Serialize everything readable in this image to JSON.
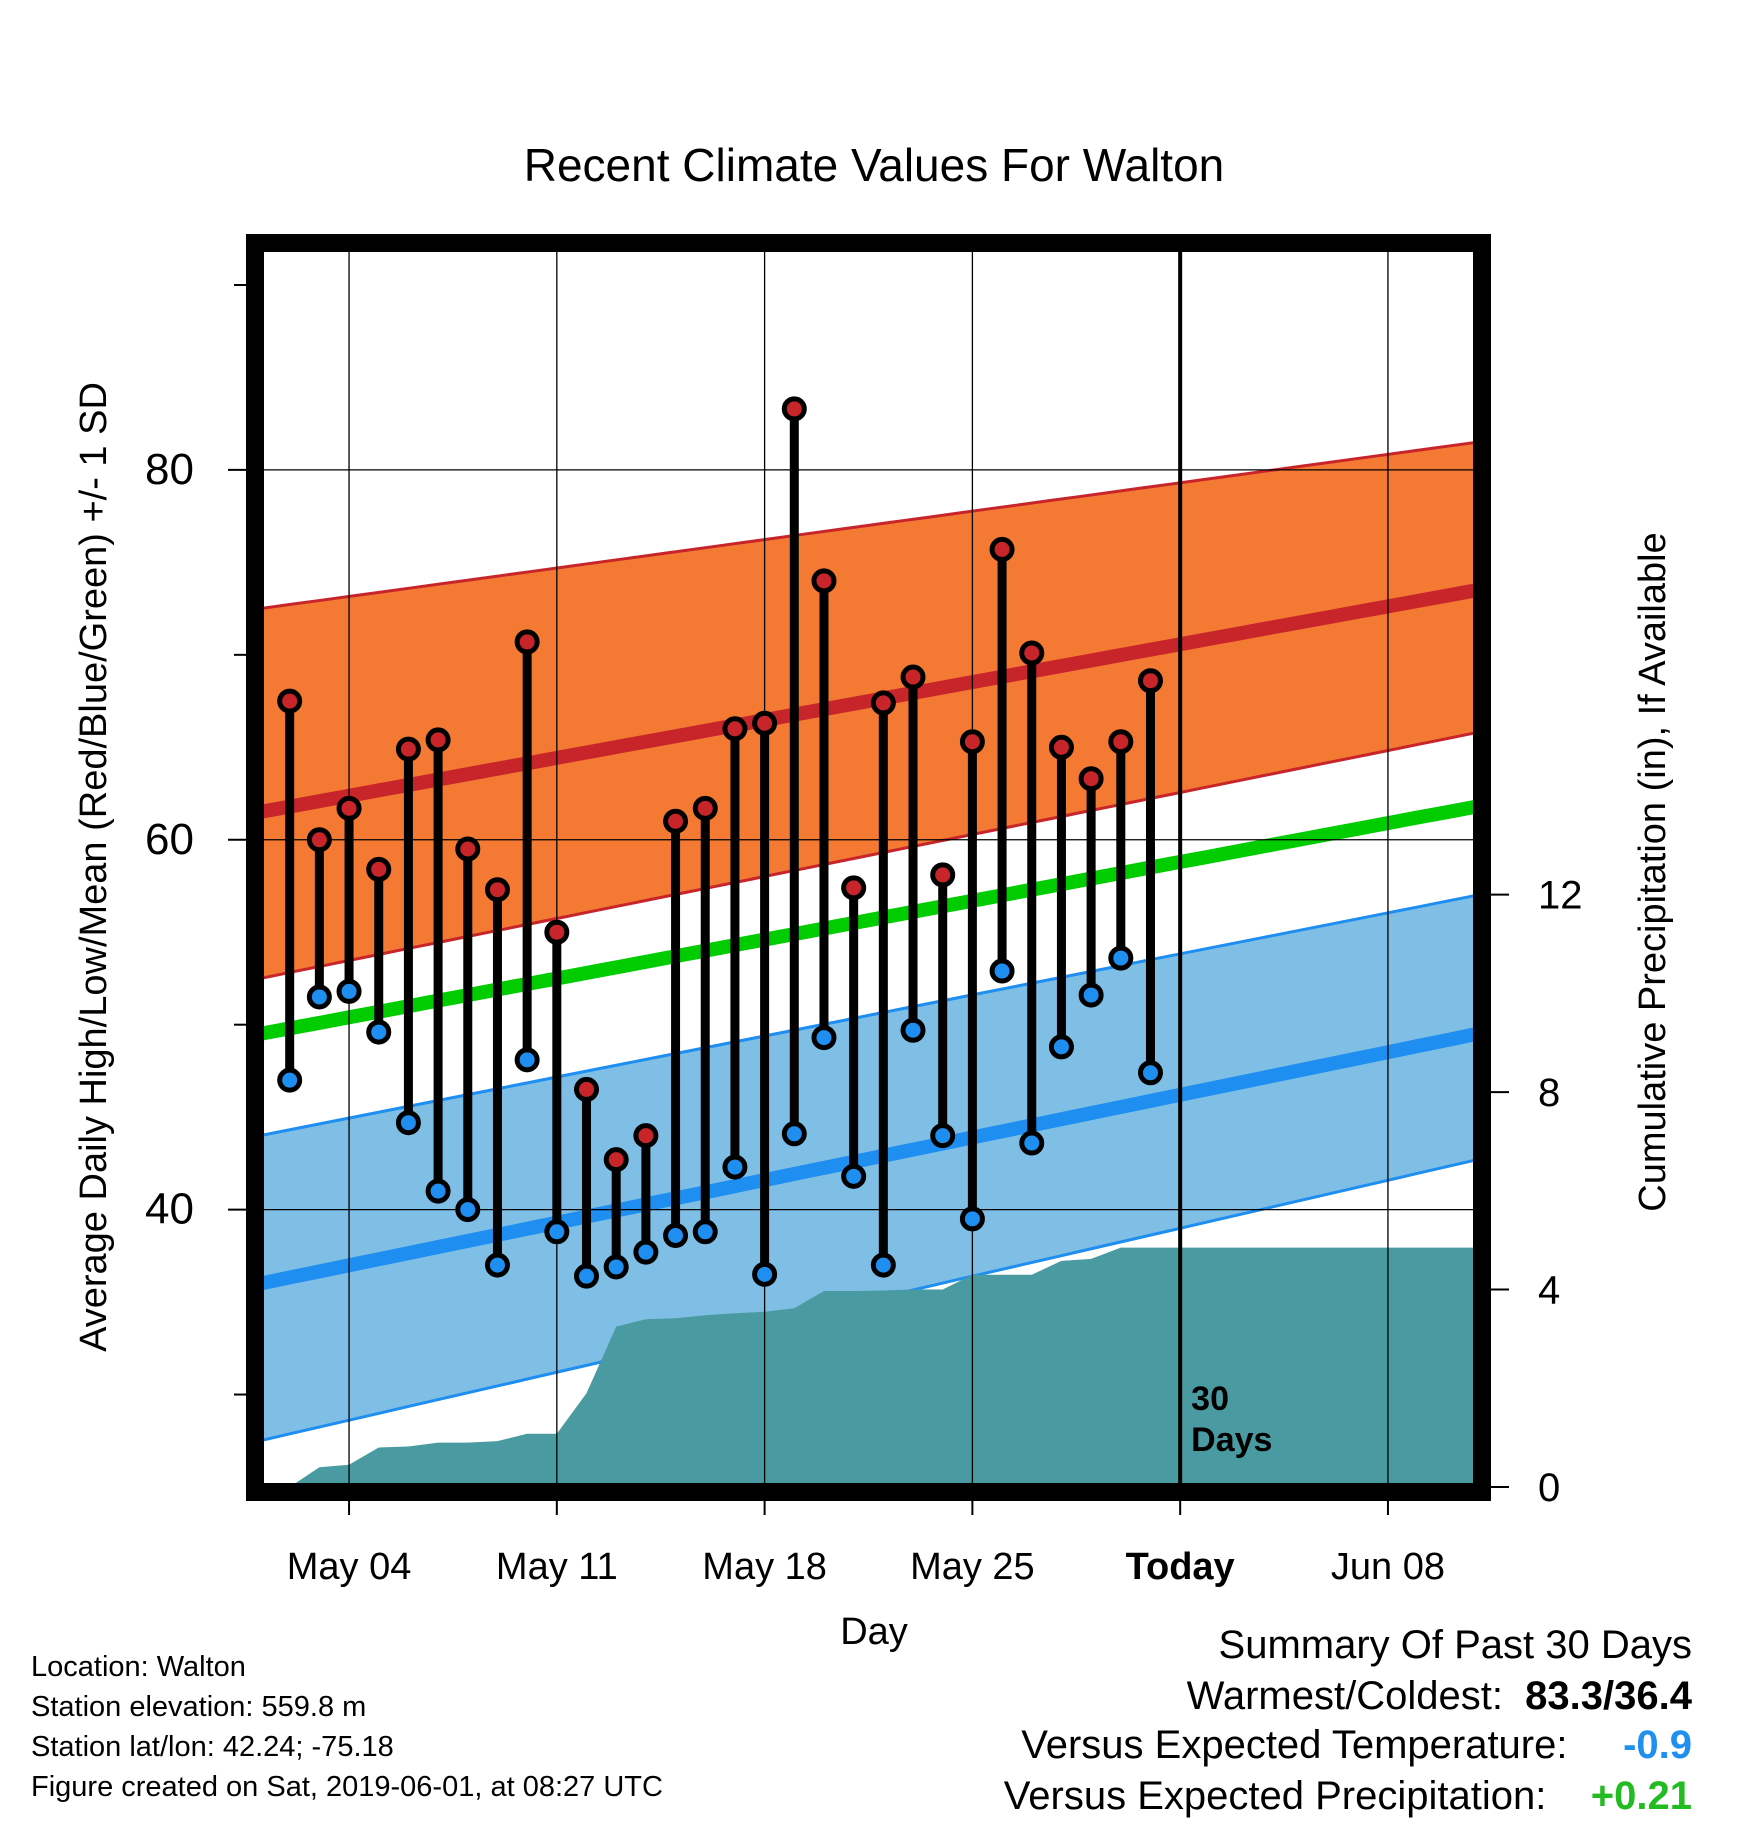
{
  "title": "Recent Climate Values For Walton",
  "footer": {
    "location": "Location: Walton",
    "elevation": "Station elevation: 559.8 m",
    "latlon": "Station lat/lon: 42.24; -75.18",
    "created": "Figure created on Sat, 2019-06-01, at 08:27 UTC"
  },
  "summary": {
    "heading": "Summary Of Past 30 Days",
    "warm_cold_label": "Warmest/Coldest:",
    "warm_cold_value": "83.3/36.4",
    "temp_label": "Versus Expected Temperature:",
    "temp_value": "-0.9",
    "precip_label": "Versus Expected Precipitation:",
    "precip_value": "+0.21"
  },
  "colors": {
    "high": "#c8252b",
    "high_band": "#f47a33",
    "low": "#1e8ef0",
    "low_band": "#7fbfe6",
    "mean": "#00cc00",
    "precip": "#4a9aa2",
    "cold_text": "#1f8ff0",
    "wet_text": "#22bb22"
  },
  "chart_data": {
    "type": "line",
    "xlabel": "Day",
    "ylabel": "Average Daily High/Low/Mean (Red/Blue/Green) +/- 1 SD",
    "y2label": "Cumulative Precipitation (in), If Available",
    "xlim": [
      "May 01",
      "Jun 11"
    ],
    "ylim": [
      25,
      92
    ],
    "y2lim": [
      0,
      25.1
    ],
    "xticks": [
      {
        "date": "May 04",
        "label": "May 04"
      },
      {
        "date": "May 11",
        "label": "May 11"
      },
      {
        "date": "May 18",
        "label": "May 18"
      },
      {
        "date": "May 25",
        "label": "May 25"
      },
      {
        "date": "Jun 01",
        "label": "Today"
      },
      {
        "date": "Jun 08",
        "label": "Jun 08"
      }
    ],
    "yticks": [
      40,
      60,
      80
    ],
    "y2ticks": [
      0,
      4,
      8,
      12
    ],
    "grid": true,
    "today_marker": {
      "date": "Jun 01",
      "label_line1": "30",
      "label_line2": "Days"
    },
    "expected_high": {
      "dates": [
        "May 01",
        "Jun 11"
      ],
      "mean": [
        61.5,
        73.5
      ],
      "upper": [
        72.5,
        81.5
      ],
      "lower": [
        52.5,
        65.8
      ]
    },
    "expected_low": {
      "dates": [
        "May 01",
        "Jun 11"
      ],
      "mean": [
        36.0,
        49.5
      ],
      "upper": [
        44.0,
        57.0
      ],
      "lower": [
        27.5,
        42.7
      ]
    },
    "expected_mean": {
      "dates": [
        "May 01",
        "Jun 11"
      ],
      "values": [
        49.5,
        61.8
      ]
    },
    "daily": {
      "dates": [
        "May 02",
        "May 03",
        "May 04",
        "May 05",
        "May 06",
        "May 07",
        "May 08",
        "May 09",
        "May 10",
        "May 11",
        "May 12",
        "May 13",
        "May 14",
        "May 15",
        "May 16",
        "May 17",
        "May 18",
        "May 19",
        "May 20",
        "May 21",
        "May 22",
        "May 23",
        "May 24",
        "May 25",
        "May 26",
        "May 27",
        "May 28",
        "May 29",
        "May 30",
        "May 31"
      ],
      "highs": [
        67.5,
        60.0,
        61.7,
        58.4,
        64.9,
        65.4,
        59.5,
        57.3,
        70.7,
        55.0,
        46.5,
        42.7,
        44.0,
        61.0,
        61.7,
        66.0,
        66.3,
        83.3,
        74.0,
        57.4,
        67.4,
        68.8,
        58.1,
        65.3,
        75.7,
        70.1,
        65.0,
        63.3,
        65.3,
        68.6
      ],
      "lows": [
        47.0,
        51.5,
        51.8,
        49.6,
        44.7,
        41.0,
        40.0,
        37.0,
        48.1,
        38.8,
        36.4,
        36.9,
        37.7,
        38.6,
        38.8,
        42.3,
        36.5,
        44.1,
        49.3,
        41.8,
        37.0,
        49.7,
        44.0,
        39.5,
        52.9,
        43.6,
        48.8,
        51.6,
        53.6,
        47.4
      ]
    },
    "precip": {
      "dates": [
        "May 02",
        "May 03",
        "May 04",
        "May 05",
        "May 06",
        "May 07",
        "May 08",
        "May 09",
        "May 10",
        "May 11",
        "May 12",
        "May 13",
        "May 14",
        "May 15",
        "May 16",
        "May 17",
        "May 18",
        "May 19",
        "May 20",
        "May 21",
        "May 22",
        "May 23",
        "May 24",
        "May 25",
        "May 26",
        "May 27",
        "May 28",
        "May 29",
        "May 30",
        "May 31",
        "Jun 01",
        "Jun 11"
      ],
      "values": [
        0.0,
        0.4,
        0.45,
        0.8,
        0.82,
        0.9,
        0.9,
        0.93,
        1.08,
        1.08,
        1.9,
        3.25,
        3.4,
        3.42,
        3.48,
        3.52,
        3.55,
        3.62,
        3.97,
        3.97,
        3.98,
        4.0,
        4.0,
        4.3,
        4.3,
        4.3,
        4.58,
        4.62,
        4.85,
        4.85,
        4.85,
        4.85
      ]
    }
  }
}
